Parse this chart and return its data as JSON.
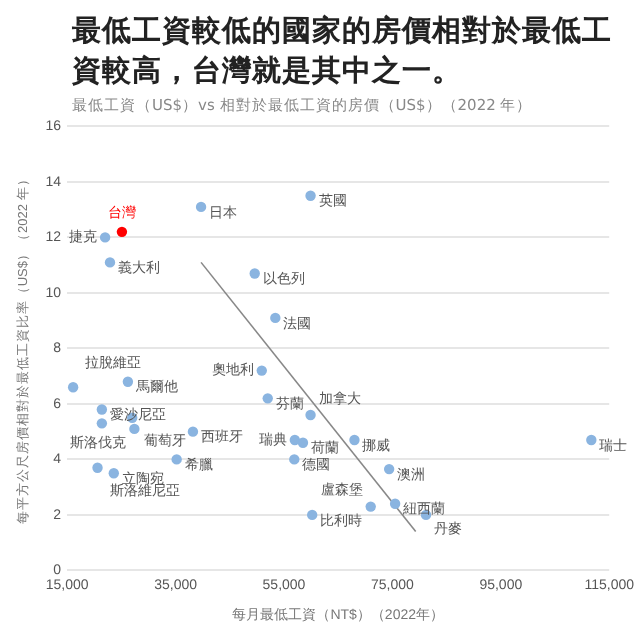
{
  "chart_data": {
    "type": "scatter",
    "title": "最低工資較低的國家的房價相對於最低工資較高，台灣就是其中之一。",
    "subtitle": "最低工資（US$）vs 相對於最低工資的房價（US$）（2022 年）",
    "xlabel": "每月最低工資（NT$）（2022年）",
    "ylabel": "每平方公尺房價相對於最低工資比率（US$）（2022 年）",
    "series": [
      {
        "color": "#8ab4e0",
        "x": [
          22000,
          22900,
          39700,
          59900,
          49600,
          53400,
          50900,
          52000,
          59900,
          68000,
          57000,
          58500,
          56900,
          60200,
          74400,
          71000,
          75500,
          81200,
          111700,
          16100,
          26200,
          21400,
          27000,
          21400,
          27400,
          38200,
          20600,
          23600,
          35200
        ],
        "values": [
          12.0,
          11.1,
          13.1,
          13.5,
          10.7,
          9.1,
          7.2,
          6.2,
          5.6,
          4.7,
          4.7,
          4.6,
          4.0,
          2.0,
          3.65,
          2.3,
          2.4,
          2.0,
          4.7,
          6.6,
          6.8,
          5.8,
          5.5,
          5.3,
          5.1,
          5.0,
          3.7,
          3.5,
          4.0
        ]
      },
      {
        "name": "台灣",
        "color": "#ff0000",
        "x": [
          25100
        ],
        "values": [
          12.2
        ]
      },
      {
        "type": "line",
        "marker": "none",
        "color": "#888888",
        "x": [
          39700,
          79300
        ],
        "values": [
          11.1,
          1.4
        ]
      }
    ],
    "annotations": [
      {
        "text": "捷克",
        "x": 22000,
        "y": 12.0
      },
      {
        "text": "義大利",
        "x": 22900,
        "y": 11.1
      },
      {
        "text": "日本",
        "x": 39700,
        "y": 13.1
      },
      {
        "text": "英國",
        "x": 59900,
        "y": 13.5
      },
      {
        "text": "以色列",
        "x": 49600,
        "y": 10.7
      },
      {
        "text": "法國",
        "x": 53400,
        "y": 9.1
      },
      {
        "text": "奧地利",
        "x": 50900,
        "y": 7.2
      },
      {
        "text": "芬蘭",
        "x": 52000,
        "y": 6.2
      },
      {
        "text": "加拿大",
        "x": 59900,
        "y": 5.6
      },
      {
        "text": "挪威",
        "x": 68000,
        "y": 4.7
      },
      {
        "text": "瑞典",
        "x": 57000,
        "y": 4.7
      },
      {
        "text": "荷蘭",
        "x": 58500,
        "y": 4.6
      },
      {
        "text": "德國",
        "x": 56900,
        "y": 4.0
      },
      {
        "text": "比利時",
        "x": 60200,
        "y": 2.0
      },
      {
        "text": "澳洲",
        "x": 74400,
        "y": 3.65
      },
      {
        "text": "盧森堡",
        "x": 71000,
        "y": 2.3
      },
      {
        "text": "紐西蘭",
        "x": 75500,
        "y": 2.4
      },
      {
        "text": "丹麥",
        "x": 81200,
        "y": 2.0
      },
      {
        "text": "瑞士",
        "x": 111700,
        "y": 4.7
      },
      {
        "text": "拉脫維亞",
        "x": 16100,
        "y": 6.6
      },
      {
        "text": "馬爾他",
        "x": 26200,
        "y": 6.8
      },
      {
        "text": "愛沙尼亞",
        "x": 21400,
        "y": 5.8
      },
      {
        "text": "葡萄牙",
        "x": 27000,
        "y": 5.5
      },
      {
        "text": "斯洛伐克",
        "x": 27400,
        "y": 5.1
      },
      {
        "text": "西班牙",
        "x": 38200,
        "y": 5.0
      },
      {
        "text": "斯洛維尼亞",
        "x": 20600,
        "y": 3.7
      },
      {
        "text": "立陶宛",
        "x": 23600,
        "y": 3.5
      },
      {
        "text": "希臘",
        "x": 35200,
        "y": 4.0
      }
    ],
    "xlim": [
      15000,
      115000
    ],
    "xticks": [
      {
        "value": 15000,
        "label": "15,000"
      },
      {
        "value": 35000,
        "label": "35,000"
      },
      {
        "value": 55000,
        "label": "55,000"
      },
      {
        "value": 75000,
        "label": "75,000"
      },
      {
        "value": 95000,
        "label": "95,000"
      },
      {
        "value": 115000,
        "label": "115,000"
      }
    ],
    "ylim": [
      0,
      16
    ],
    "yticks": [
      0,
      2,
      4,
      6,
      8,
      10,
      12,
      14,
      16
    ],
    "grid": "y",
    "marker": "circle"
  }
}
